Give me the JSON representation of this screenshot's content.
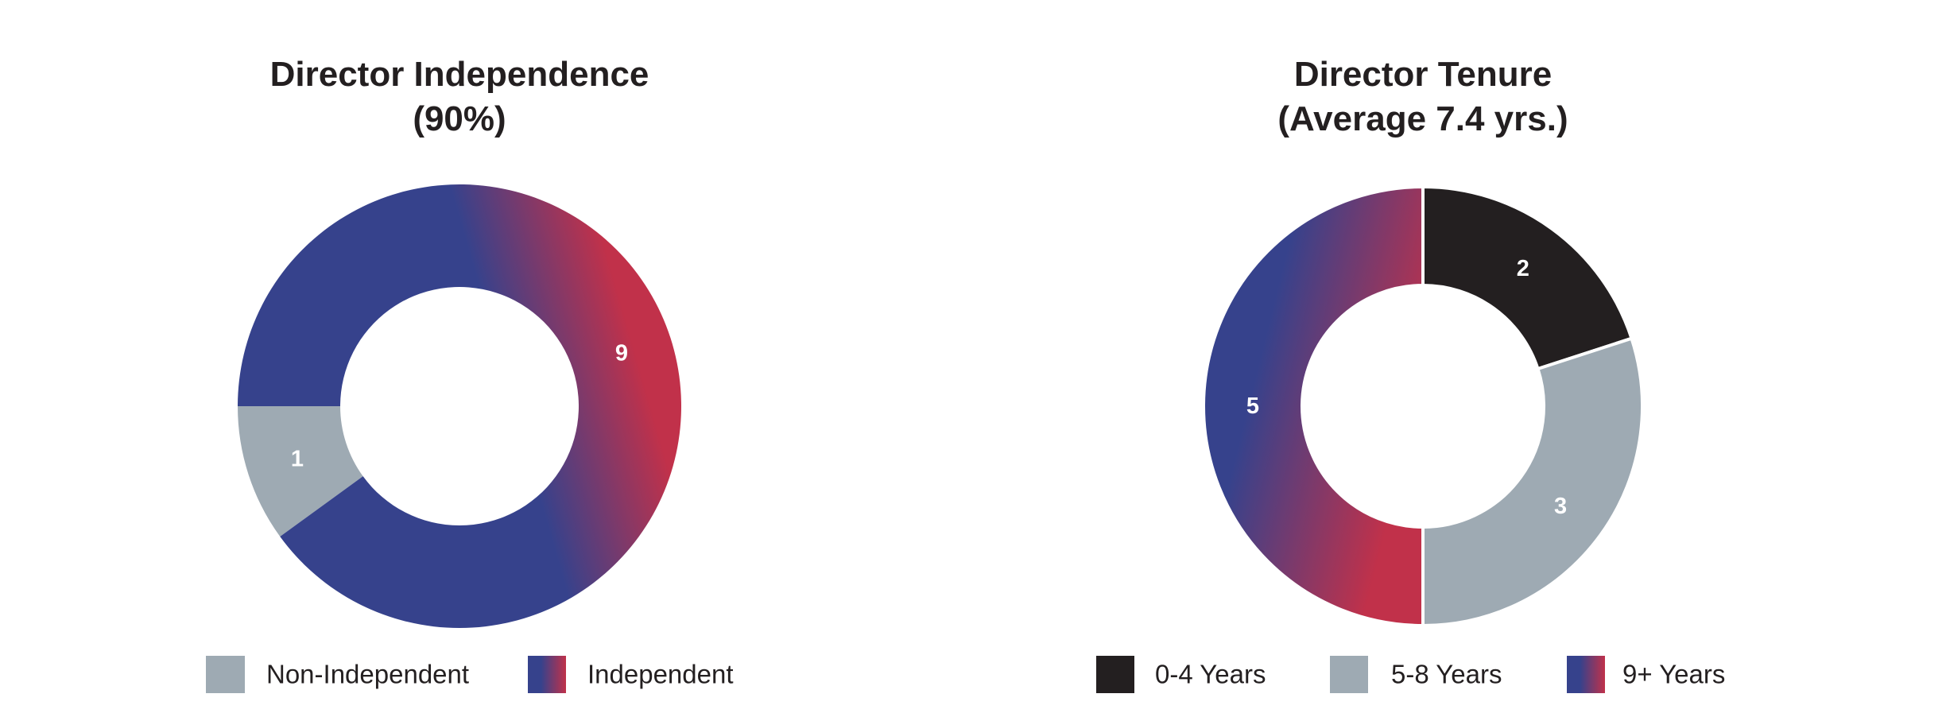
{
  "colors": {
    "dark": "#231f20",
    "gray": "#9eaab3",
    "blue": "#36428c",
    "red": "#c1314a",
    "text": "#231f20",
    "label": "#ffffff",
    "separator": "#ffffff"
  },
  "chart_data": [
    {
      "type": "pie",
      "title_lines": [
        "Director Independence",
        "(90%)"
      ],
      "slices": [
        {
          "label": "Non-Independent",
          "value": 1,
          "color": "gray"
        },
        {
          "label": "Independent",
          "value": 9,
          "color": "gradient"
        }
      ],
      "legend": [
        "Non-Independent",
        "Independent"
      ],
      "legend_position": "bottom"
    },
    {
      "type": "pie",
      "title_lines": [
        "Director Tenure",
        "(Average 7.4 yrs.)"
      ],
      "slices": [
        {
          "label": "0-4 Years",
          "value": 2,
          "color": "dark"
        },
        {
          "label": "5-8 Years",
          "value": 3,
          "color": "gray"
        },
        {
          "label": "9+ Years",
          "value": 5,
          "color": "gradient"
        }
      ],
      "legend": [
        "0-4 Years",
        "5-8 Years",
        "9+ Years"
      ],
      "legend_position": "bottom"
    }
  ]
}
